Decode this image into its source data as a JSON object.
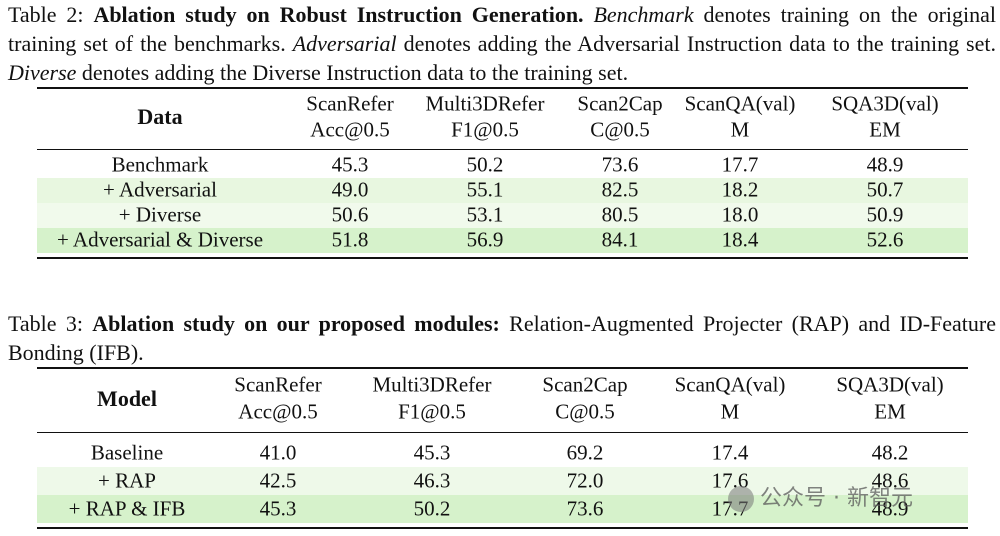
{
  "table2": {
    "caption": [
      "Table 2: ",
      "Ablation study on Robust Instruction Generation.",
      " ",
      "Benchmark",
      " denotes training on the original training set of the benchmarks. ",
      "Adversarial",
      " denotes adding the Adversarial Instruction data to the training set. ",
      "Diverse",
      " denotes adding the Diverse Instruction data to the training set."
    ],
    "header": [
      [
        "Data"
      ],
      [
        "ScanRefer",
        "Acc@0.5"
      ],
      [
        "Multi3DRefer",
        "F1@0.5"
      ],
      [
        "Scan2Cap",
        "C@0.5"
      ],
      [
        "ScanQA(val)",
        "M"
      ],
      [
        "SQA3D(val)",
        "EM"
      ]
    ],
    "rows": [
      [
        "Benchmark",
        "45.3",
        "50.2",
        "73.6",
        "17.7",
        "48.9"
      ],
      [
        "+ Adversarial",
        "49.0",
        "55.1",
        "82.5",
        "18.2",
        "50.7"
      ],
      [
        "+ Diverse",
        "50.6",
        "53.1",
        "80.5",
        "18.0",
        "50.9"
      ],
      [
        "+ Adversarial & Diverse",
        "51.8",
        "56.9",
        "84.1",
        "18.4",
        "52.6"
      ]
    ]
  },
  "table3": {
    "caption": [
      "Table 3: ",
      "Ablation study on our proposed modules:",
      " Relation-Augmented Projecter (RAP) and ID-Feature Bonding (IFB)."
    ],
    "header": [
      [
        "Model"
      ],
      [
        "ScanRefer",
        "Acc@0.5"
      ],
      [
        "Multi3DRefer",
        "F1@0.5"
      ],
      [
        "Scan2Cap",
        "C@0.5"
      ],
      [
        "ScanQA(val)",
        "M"
      ],
      [
        "SQA3D(val)",
        "EM"
      ]
    ],
    "rows": [
      [
        "Baseline",
        "41.0",
        "45.3",
        "69.2",
        "17.4",
        "48.2"
      ],
      [
        "+ RAP",
        "42.5",
        "46.3",
        "72.0",
        "17.6",
        "48.6"
      ],
      [
        "+ RAP & IFB",
        "45.3",
        "50.2",
        "73.6",
        "17.7",
        "48.9"
      ]
    ]
  },
  "watermark": "公众号 · 新智元"
}
